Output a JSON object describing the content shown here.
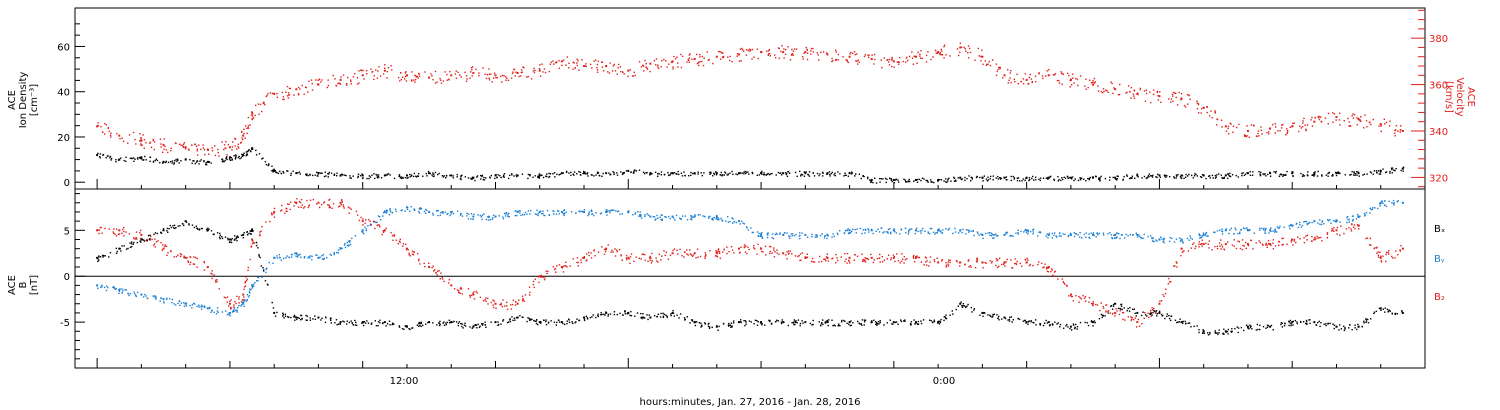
{
  "chart_data": [
    {
      "type": "scatter",
      "ylabel_left": [
        "ACE",
        "Ion Density",
        "[cm⁻³]"
      ],
      "ylabel_right": [
        "ACE",
        "Velocity",
        "[km/s]"
      ],
      "yticks_left": [
        "0",
        "20",
        "40",
        "60"
      ],
      "yticks_right": [
        "320",
        "340",
        "360",
        "380"
      ],
      "ylim_left": [
        -3,
        77
      ],
      "ylim_right": [
        315,
        393
      ],
      "x_range_hours": [
        -0.5,
        30
      ],
      "series": [
        {
          "axis": "left",
          "color": "#000000",
          "x": [
            0,
            0.5,
            1,
            1.5,
            2,
            2.5,
            3,
            3.3,
            3.5,
            4,
            4.5,
            5,
            5.5,
            6,
            6.5,
            7,
            7.5,
            8,
            8.5,
            9,
            9.5,
            10,
            10.5,
            11,
            11.5,
            12,
            12.5,
            13,
            13.5,
            14,
            14.5,
            15,
            15.5,
            16,
            16.5,
            17,
            17.5,
            18,
            18.5,
            19,
            19.5,
            20,
            20.5,
            21,
            21.5,
            22,
            22.5,
            23,
            23.5,
            24,
            24.5,
            25,
            25.5,
            26,
            26.5,
            27,
            27.5,
            28,
            28.5,
            29,
            29.5
          ],
          "values": [
            12,
            10,
            11,
            9,
            10,
            9,
            11,
            12,
            15,
            5,
            4,
            4,
            3,
            3,
            3,
            3,
            4,
            3,
            2,
            3,
            3,
            3,
            4,
            4,
            4,
            5,
            4,
            4,
            4,
            4,
            4,
            4,
            4,
            4,
            4,
            4,
            1,
            1,
            1,
            1,
            2,
            2,
            2,
            2,
            2,
            2,
            2,
            2,
            3,
            3,
            3,
            3,
            3,
            4,
            4,
            4,
            4,
            4,
            4,
            5,
            6
          ]
        },
        {
          "axis": "right",
          "color": "#e0201b",
          "x": [
            0,
            0.5,
            1,
            1.5,
            2,
            2.5,
            3,
            3.3,
            3.5,
            4,
            4.5,
            5,
            5.5,
            6,
            6.5,
            7,
            7.5,
            8,
            8.5,
            9,
            9.5,
            10,
            10.5,
            11,
            11.5,
            12,
            12.5,
            13,
            13.5,
            14,
            14.5,
            15,
            15.5,
            16,
            16.5,
            17,
            17.5,
            18,
            18.5,
            19,
            19.5,
            20,
            20.5,
            21,
            21.5,
            22,
            22.5,
            23,
            23.5,
            24,
            24.5,
            25,
            25.5,
            26,
            26.5,
            27,
            27.5,
            28,
            28.5,
            29,
            29.5
          ],
          "values": [
            342,
            338,
            336,
            334,
            333,
            332,
            333,
            338,
            348,
            356,
            358,
            360,
            362,
            364,
            366,
            364,
            363,
            364,
            365,
            364,
            365,
            366,
            370,
            368,
            368,
            366,
            369,
            370,
            371,
            372,
            373,
            374,
            374,
            374,
            373,
            372,
            371,
            370,
            372,
            374,
            376,
            372,
            364,
            362,
            364,
            362,
            360,
            358,
            356,
            355,
            354,
            350,
            342,
            340,
            341,
            342,
            344,
            346,
            345,
            343,
            340
          ]
        }
      ]
    },
    {
      "type": "scatter",
      "ylabel": [
        "ACE",
        "B",
        "[nT]"
      ],
      "yticks": [
        "-5",
        "0",
        "5"
      ],
      "ylim": [
        -10,
        9.5
      ],
      "legend": [
        "Bₓ",
        "Bᵧ",
        "B₂"
      ],
      "legend_placement": "right",
      "x_range_hours": [
        -0.5,
        30
      ],
      "series": [
        {
          "name": "Bx",
          "color": "#000000",
          "x": [
            0,
            0.5,
            1,
            1.5,
            2,
            2.5,
            3,
            3.3,
            3.5,
            4,
            4.5,
            5,
            5.5,
            6,
            6.5,
            7,
            7.5,
            8,
            8.5,
            9,
            9.5,
            10,
            10.5,
            11,
            11.5,
            12,
            12.5,
            13,
            13.5,
            14,
            14.5,
            15,
            15.5,
            16,
            16.5,
            17,
            17.5,
            18,
            18.5,
            19,
            19.5,
            20,
            20.5,
            21,
            21.5,
            22,
            22.5,
            23,
            23.5,
            24,
            24.5,
            25,
            25.5,
            26,
            26.5,
            27,
            27.5,
            28,
            28.5,
            29,
            29.5
          ],
          "values": [
            2,
            3,
            4,
            5,
            6,
            5,
            4,
            4.5,
            5,
            -4,
            -4.5,
            -4.5,
            -5,
            -5,
            -5,
            -5.5,
            -5,
            -5,
            -5.5,
            -5,
            -4.5,
            -5,
            -5,
            -4.5,
            -4,
            -4,
            -4.5,
            -4,
            -5,
            -5.5,
            -5,
            -5,
            -5,
            -5,
            -5,
            -5,
            -5,
            -5,
            -5,
            -5,
            -3,
            -4,
            -4.5,
            -5,
            -5,
            -5.5,
            -5,
            -3,
            -4,
            -4,
            -5,
            -6,
            -6,
            -5.5,
            -5.5,
            -5,
            -5,
            -5.5,
            -5.5,
            -3.5,
            -4
          ]
        },
        {
          "name": "By",
          "color": "#1a7fd4",
          "x": [
            0,
            0.5,
            1,
            1.5,
            2,
            2.5,
            3,
            3.3,
            3.5,
            4,
            4.5,
            5,
            5.5,
            6,
            6.5,
            7,
            7.5,
            8,
            8.5,
            9,
            9.5,
            10,
            10.5,
            11,
            11.5,
            12,
            12.5,
            13,
            13.5,
            14,
            14.5,
            15,
            15.5,
            16,
            16.5,
            17,
            17.5,
            18,
            18.5,
            19,
            19.5,
            20,
            20.5,
            21,
            21.5,
            22,
            22.5,
            23,
            23.5,
            24,
            24.5,
            25,
            25.5,
            26,
            26.5,
            27,
            27.5,
            28,
            28.5,
            29,
            29.5
          ],
          "values": [
            -1,
            -1.5,
            -2,
            -2.5,
            -3,
            -3.5,
            -4,
            -3,
            -1,
            2,
            2.5,
            2,
            3,
            5,
            7,
            7.5,
            7,
            7,
            6.5,
            6.5,
            7,
            7,
            7,
            7,
            7,
            7,
            6.5,
            6.5,
            6.5,
            6.5,
            6,
            4.5,
            4.5,
            4.5,
            4.5,
            5,
            5,
            5,
            5,
            5,
            5,
            4.5,
            4.5,
            5,
            4.5,
            4.5,
            4.5,
            4.5,
            4.5,
            4,
            4,
            4.5,
            5,
            5,
            5,
            5.5,
            6,
            6,
            6.5,
            8,
            8
          ]
        },
        {
          "name": "Bz",
          "color": "#e0201b",
          "x": [
            0,
            0.5,
            1,
            1.5,
            2,
            2.5,
            3,
            3.3,
            3.5,
            4,
            4.5,
            5,
            5.5,
            6,
            6.5,
            7,
            7.5,
            8,
            8.5,
            9,
            9.5,
            10,
            10.5,
            11,
            11.5,
            12,
            12.5,
            13,
            13.5,
            14,
            14.5,
            15,
            15.5,
            16,
            16.5,
            17,
            17.5,
            18,
            18.5,
            19,
            19.5,
            20,
            20.5,
            21,
            21.5,
            22,
            22.5,
            23,
            23.5,
            24,
            24.5,
            25,
            25.5,
            26,
            26.5,
            27,
            27.5,
            28,
            28.5,
            29,
            29.5
          ],
          "values": [
            5,
            5,
            4.5,
            3,
            2,
            1,
            -3,
            -2,
            4,
            7,
            8,
            8,
            8,
            6,
            5,
            3,
            1,
            -1,
            -2,
            -3,
            -3,
            0,
            1,
            2,
            3,
            2,
            2,
            2.5,
            2.5,
            2.5,
            3,
            3,
            2.5,
            2,
            2,
            2,
            2,
            2,
            2,
            1.5,
            1.5,
            1.5,
            1.5,
            1.5,
            1,
            -2,
            -3,
            -4,
            -5,
            -3,
            3,
            3.5,
            3.5,
            3.5,
            3.5,
            4,
            4,
            5,
            5.5,
            2,
            3
          ]
        }
      ]
    }
  ],
  "x_axis": {
    "tick_labels": [
      "12:00",
      "0:00"
    ],
    "label": "hours:minutes, Jan. 27, 2016 - Jan. 28, 2016"
  }
}
